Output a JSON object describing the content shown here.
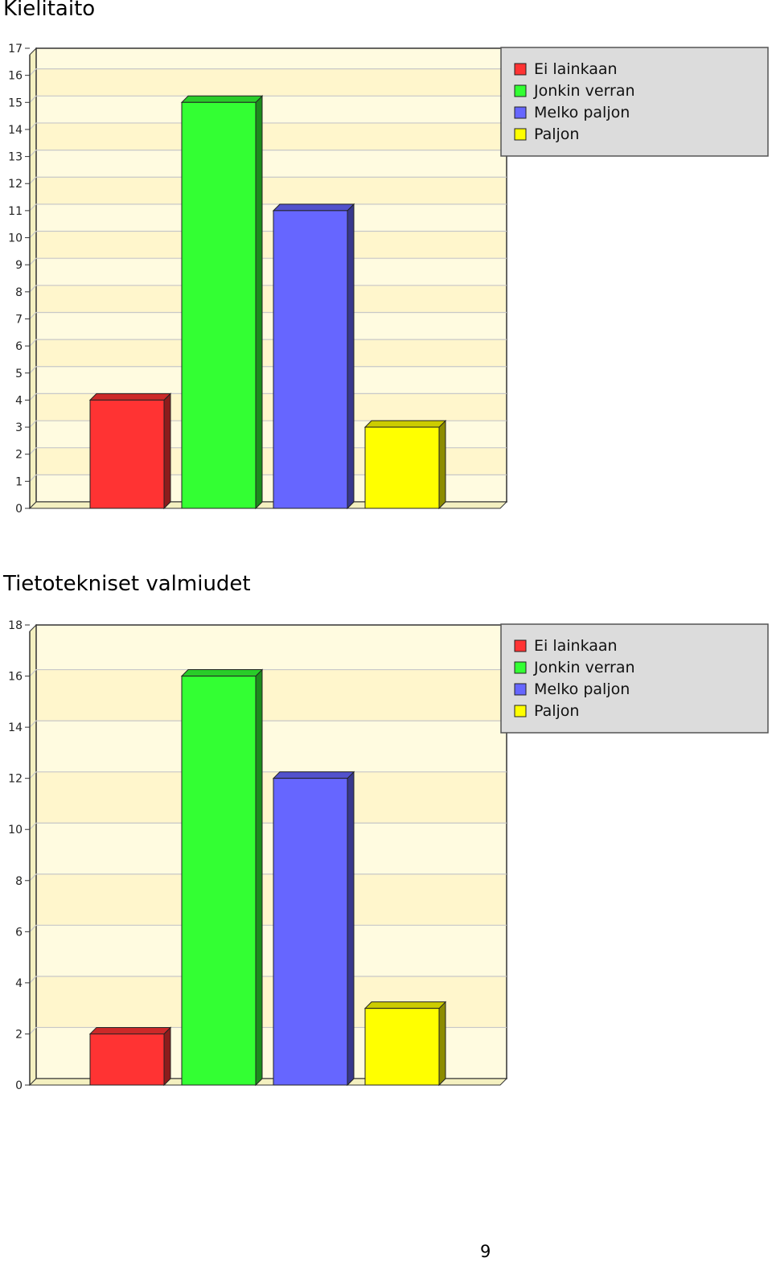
{
  "chart_data": [
    {
      "type": "bar",
      "title": "Kielitaito",
      "categories": [
        "Ei lainkaan",
        "Jonkin verran",
        "Melko paljon",
        "Paljon"
      ],
      "values": [
        4,
        15,
        11,
        3
      ],
      "ylim": [
        0,
        17
      ],
      "ytick_step": 1,
      "colors": [
        "#ff3333",
        "#33ff33",
        "#6666ff",
        "#ffff00"
      ],
      "legend": [
        "Ei lainkaan",
        "Jonkin verran",
        "Melko paljon",
        "Paljon"
      ],
      "legend_position": "top-right",
      "grid": true
    },
    {
      "type": "bar",
      "title": "Tietotekniset valmiudet",
      "categories": [
        "Ei lainkaan",
        "Jonkin verran",
        "Melko paljon",
        "Paljon"
      ],
      "values": [
        2,
        16,
        12,
        3
      ],
      "ylim": [
        0,
        18
      ],
      "ytick_step": 2,
      "colors": [
        "#ff3333",
        "#33ff33",
        "#6666ff",
        "#ffff00"
      ],
      "legend": [
        "Ei lainkaan",
        "Jonkin verran",
        "Melko paljon",
        "Paljon"
      ],
      "legend_position": "top-right",
      "grid": true
    }
  ],
  "page": {
    "number": "9"
  }
}
